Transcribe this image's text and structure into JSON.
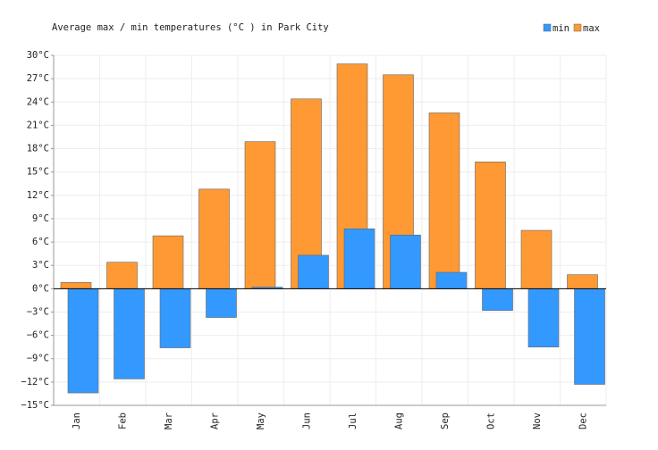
{
  "chart_data": {
    "type": "bar",
    "title": "Average max / min temperatures (°C ) in Park City",
    "categories": [
      "Jan",
      "Feb",
      "Mar",
      "Apr",
      "May",
      "Jun",
      "Jul",
      "Aug",
      "Sep",
      "Oct",
      "Nov",
      "Dec"
    ],
    "series": [
      {
        "name": "min",
        "color": "#3399ff",
        "values": [
          -13.4,
          -11.6,
          -7.6,
          -3.7,
          0.2,
          4.3,
          7.7,
          6.9,
          2.1,
          -2.8,
          -7.5,
          -12.3
        ]
      },
      {
        "name": "max",
        "color": "#ff9933",
        "values": [
          0.8,
          3.4,
          6.8,
          12.8,
          18.9,
          24.4,
          28.9,
          27.5,
          22.6,
          16.3,
          7.5,
          1.8
        ]
      }
    ],
    "ylim": [
      -15,
      30
    ],
    "yticks": [
      {
        "value": -15,
        "label": "−15°C"
      },
      {
        "value": -12,
        "label": "−12°C"
      },
      {
        "value": -9,
        "label": "−9°C"
      },
      {
        "value": -6,
        "label": "−6°C"
      },
      {
        "value": -3,
        "label": "−3°C"
      },
      {
        "value": 0,
        "label": "0°C"
      },
      {
        "value": 3,
        "label": "3°C"
      },
      {
        "value": 6,
        "label": "6°C"
      },
      {
        "value": 9,
        "label": "9°C"
      },
      {
        "value": 12,
        "label": "12°C"
      },
      {
        "value": 15,
        "label": "15°C"
      },
      {
        "value": 18,
        "label": "18°C"
      },
      {
        "value": 21,
        "label": "21°C"
      },
      {
        "value": 24,
        "label": "24°C"
      },
      {
        "value": 27,
        "label": "27°C"
      },
      {
        "value": 30,
        "label": "30°C"
      }
    ],
    "grid": true
  }
}
